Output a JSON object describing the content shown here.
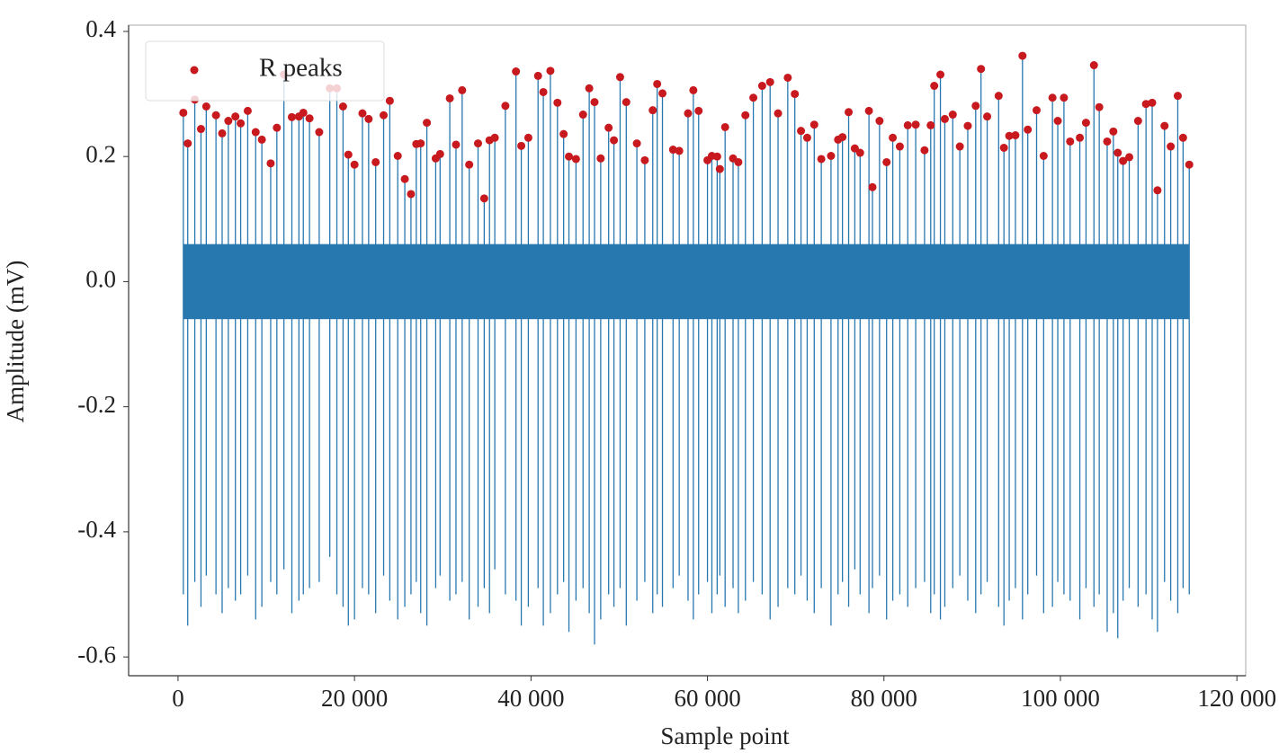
{
  "chart_data": {
    "type": "ecg",
    "x_label": "Sample point",
    "y_label": "Amplitude (mV)",
    "xlim": [
      -5600,
      121000
    ],
    "ylim": [
      -0.63,
      0.41
    ],
    "xticks": [
      0,
      {
        "value": 20000,
        "label": "20 000"
      },
      {
        "value": 40000,
        "label": "40 000"
      },
      {
        "value": 60000,
        "label": "60 000"
      },
      {
        "value": 80000,
        "label": "80 000"
      },
      {
        "value": 100000,
        "label": "100 000"
      },
      {
        "value": 120000,
        "label": "120 000"
      }
    ],
    "yticks": [
      0.4,
      0.2,
      {
        "value": 0,
        "label": "0.0"
      },
      -0.2,
      -0.4,
      -0.6
    ],
    "legend": "upper left",
    "signal": {
      "color": "#2878b0",
      "noise": [
        -0.06,
        0.06
      ],
      "lows": [
        -0.5,
        -0.55,
        -0.48,
        -0.52,
        -0.47,
        -0.5,
        -0.53,
        -0.49,
        -0.51,
        -0.5,
        -0.47,
        -0.54,
        -0.52,
        -0.48,
        -0.5,
        -0.46,
        -0.53,
        -0.51,
        -0.5,
        -0.49,
        -0.48,
        -0.44,
        -0.5,
        -0.52,
        -0.55,
        -0.54,
        -0.49,
        -0.5,
        -0.53,
        -0.47,
        -0.51,
        -0.54,
        -0.52,
        -0.5,
        -0.48,
        -0.53,
        -0.55,
        -0.49,
        -0.47,
        -0.51,
        -0.5,
        -0.48,
        -0.54,
        -0.52,
        -0.49,
        -0.53,
        -0.46,
        -0.5,
        -0.51,
        -0.55,
        -0.52,
        -0.49,
        -0.55,
        -0.53,
        -0.5,
        -0.48,
        -0.56,
        -0.51,
        -0.49,
        -0.53,
        -0.58,
        -0.54,
        -0.5,
        -0.52,
        -0.49,
        -0.55,
        -0.51,
        -0.48,
        -0.53,
        -0.5,
        -0.52,
        -0.49,
        -0.47,
        -0.51,
        -0.54,
        -0.5,
        -0.48,
        -0.53,
        -0.5,
        -0.47,
        -0.52,
        -0.49,
        -0.53,
        -0.51,
        -0.48,
        -0.5,
        -0.54,
        -0.52,
        -0.49,
        -0.5,
        -0.47,
        -0.51,
        -0.53,
        -0.49,
        -0.55,
        -0.5,
        -0.48,
        -0.52,
        -0.46,
        -0.5,
        -0.53,
        -0.49,
        -0.47,
        -0.54,
        -0.51,
        -0.5,
        -0.52,
        -0.49,
        -0.48,
        -0.53,
        -0.5,
        -0.54,
        -0.52,
        -0.49,
        -0.47,
        -0.51,
        -0.53,
        -0.5,
        -0.48,
        -0.52,
        -0.55,
        -0.51,
        -0.49,
        -0.54,
        -0.5,
        -0.47,
        -0.53,
        -0.52,
        -0.48,
        -0.5,
        -0.51,
        -0.54,
        -0.49,
        -0.52,
        -0.5,
        -0.56,
        -0.53,
        -0.57,
        -0.51,
        -0.49,
        -0.52,
        -0.5,
        -0.54,
        -0.56,
        -0.48,
        -0.51,
        -0.53,
        -0.49,
        -0.5
      ]
    },
    "series": [
      {
        "name": "R peaks",
        "color": "#c8191e",
        "x": [
          600,
          1100,
          1900,
          2600,
          3200,
          4300,
          5000,
          5700,
          6500,
          7100,
          7900,
          8800,
          9500,
          10500,
          11200,
          12000,
          12900,
          13700,
          14200,
          14900,
          16000,
          17200,
          18000,
          18700,
          19300,
          20000,
          20900,
          21600,
          22400,
          23300,
          24000,
          24900,
          25700,
          26400,
          27000,
          27500,
          28200,
          29200,
          29700,
          30800,
          31500,
          32200,
          33000,
          34000,
          34700,
          35300,
          35900,
          37100,
          38300,
          38900,
          39700,
          40800,
          41400,
          42200,
          43000,
          43700,
          44300,
          45100,
          45900,
          46600,
          47200,
          47900,
          48800,
          49400,
          50100,
          50800,
          52000,
          52900,
          53800,
          54300,
          54900,
          56100,
          56800,
          57800,
          58400,
          59000,
          60000,
          60500,
          61100,
          61400,
          62000,
          62900,
          63500,
          64300,
          65200,
          66200,
          67100,
          68000,
          69100,
          69900,
          70600,
          71300,
          72100,
          72900,
          74000,
          74800,
          75300,
          76000,
          76700,
          77300,
          78300,
          78700,
          79500,
          80300,
          81000,
          81800,
          82700,
          83600,
          84600,
          85300,
          85700,
          86400,
          86900,
          87800,
          88600,
          89500,
          90400,
          91000,
          91700,
          93000,
          93600,
          94200,
          94900,
          95700,
          96300,
          97300,
          98100,
          99100,
          99700,
          100400,
          101100,
          102200,
          102900,
          103800,
          104400,
          105300,
          106000,
          106500,
          107100,
          107800,
          108800,
          109700,
          110400,
          111000,
          111800,
          112500,
          113300,
          113900,
          114600
        ],
        "values": [
          0.27,
          0.221,
          0.291,
          0.244,
          0.28,
          0.266,
          0.237,
          0.257,
          0.264,
          0.253,
          0.273,
          0.239,
          0.227,
          0.189,
          0.246,
          0.331,
          0.263,
          0.264,
          0.27,
          0.261,
          0.239,
          0.309,
          0.309,
          0.28,
          0.203,
          0.187,
          0.269,
          0.26,
          0.191,
          0.266,
          0.289,
          0.201,
          0.164,
          0.14,
          0.22,
          0.221,
          0.254,
          0.197,
          0.204,
          0.293,
          0.219,
          0.306,
          0.187,
          0.221,
          0.133,
          0.226,
          0.23,
          0.281,
          0.336,
          0.217,
          0.23,
          0.329,
          0.303,
          0.337,
          0.286,
          0.236,
          0.2,
          0.196,
          0.267,
          0.309,
          0.287,
          0.197,
          0.246,
          0.226,
          0.327,
          0.287,
          0.221,
          0.194,
          0.274,
          0.316,
          0.301,
          0.211,
          0.209,
          0.269,
          0.306,
          0.273,
          0.194,
          0.201,
          0.2,
          0.18,
          0.247,
          0.197,
          0.191,
          0.266,
          0.294,
          0.313,
          0.319,
          0.269,
          0.326,
          0.3,
          0.241,
          0.23,
          0.251,
          0.196,
          0.201,
          0.227,
          0.231,
          0.271,
          0.213,
          0.206,
          0.273,
          0.151,
          0.257,
          0.191,
          0.23,
          0.216,
          0.25,
          0.251,
          0.21,
          0.25,
          0.313,
          0.331,
          0.26,
          0.267,
          0.216,
          0.249,
          0.281,
          0.34,
          0.264,
          0.297,
          0.214,
          0.233,
          0.234,
          0.361,
          0.243,
          0.274,
          0.201,
          0.294,
          0.257,
          0.294,
          0.224,
          0.23,
          0.254,
          0.346,
          0.279,
          0.224,
          0.24,
          0.206,
          0.193,
          0.199,
          0.257,
          0.284,
          0.286,
          0.146,
          0.249,
          0.216,
          0.297,
          0.23,
          0.187
        ]
      }
    ]
  }
}
